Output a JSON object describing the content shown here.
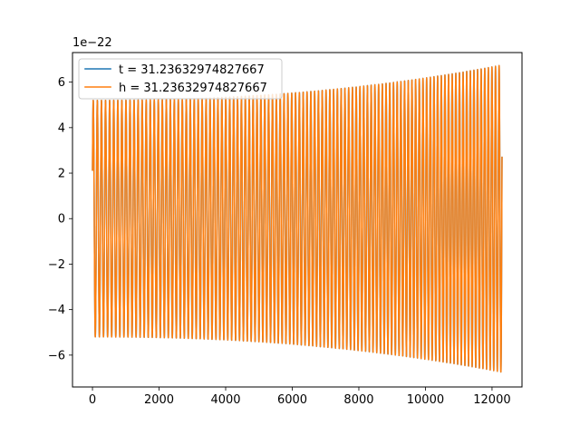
{
  "chart_data": {
    "type": "line",
    "title": "",
    "xlabel": "",
    "ylabel": "",
    "y_offset_text": "1e−22",
    "xlim": [
      -600,
      12900
    ],
    "ylim": [
      -7.4,
      7.3
    ],
    "y_scale_factor": 1e-22,
    "grid": false,
    "legend_position": "top-left",
    "x_ticks": [
      {
        "value": 0,
        "label": "0"
      },
      {
        "value": 2000,
        "label": "2000"
      },
      {
        "value": 4000,
        "label": "4000"
      },
      {
        "value": 6000,
        "label": "6000"
      },
      {
        "value": 8000,
        "label": "8000"
      },
      {
        "value": 10000,
        "label": "10000"
      },
      {
        "value": 12000,
        "label": "12000"
      }
    ],
    "y_ticks": [
      {
        "value": -6,
        "label": "−6"
      },
      {
        "value": -4,
        "label": "−4"
      },
      {
        "value": -2,
        "label": "−2"
      },
      {
        "value": 0,
        "label": "0"
      },
      {
        "value": 2,
        "label": "2"
      },
      {
        "value": 4,
        "label": "4"
      },
      {
        "value": 6,
        "label": "6"
      }
    ],
    "waveform": {
      "x_start": 0,
      "x_end": 12300,
      "cycles": 107,
      "amplitude_start": 5.2,
      "amplitude_end": 6.75,
      "initial_value": 2.1
    },
    "series": [
      {
        "name": "t = 31.23632974827667",
        "color": "#1f77b4"
      },
      {
        "name": "h = 31.23632974827667",
        "color": "#ff7f0e"
      }
    ]
  }
}
